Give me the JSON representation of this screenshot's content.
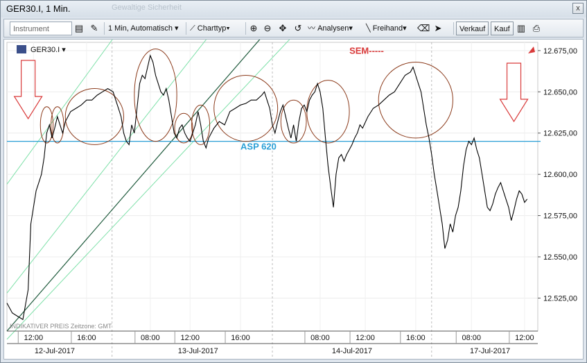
{
  "window": {
    "title": "GER30.I, 1 Min.",
    "ghost_text": "Gewaltige Sicherheit",
    "close_glyph": "x"
  },
  "toolbar": {
    "instrument_placeholder": "Instrument",
    "interval": "1 Min, Automatisch",
    "charttype": "Charttyp",
    "analysen": "Analysen",
    "freihand": "Freihand",
    "verkauf": "Verkauf",
    "kauf": "Kauf"
  },
  "chart_header": {
    "symbol": "GER30.I",
    "footnote": "INDIKATIVER PREIS   Zeitzone: GMT"
  },
  "annotations": {
    "asp": "ASP 620",
    "sem": "SEM-----"
  },
  "colors": {
    "price_line": "#000000",
    "ellipse": "#8b3a1a",
    "asp_line": "#2a9fd6",
    "channel_light": "#7de0a8",
    "channel_dark": "#1e5a3c",
    "arrow": "#d93a3a",
    "sem_text": "#d93a3a",
    "asp_text": "#2a9fd6"
  },
  "icons": [
    "instrument-picker-icon",
    "compare-icon",
    "charttype-icon",
    "zoom-in-icon",
    "zoom-out-icon",
    "pan-icon",
    "undo-icon",
    "analysen-icon",
    "freihand-line-icon",
    "eraser-icon",
    "cursor-icon",
    "chart-layout-icon",
    "print-icon",
    "cfd-badge-icon",
    "trend-flag-icon"
  ],
  "chart_data": {
    "type": "line",
    "ylim": [
      12505,
      12680
    ],
    "yticks": [
      12525,
      12550,
      12575,
      12600,
      12625,
      12650,
      12675
    ],
    "ytick_labels": [
      "12.525,00",
      "12.550,00",
      "12.575,00",
      "12.600,00",
      "12.625,00",
      "12.650,00",
      "12.675,00"
    ],
    "time_ticks": [
      {
        "label": "12:00",
        "t": 0.05
      },
      {
        "label": "16:00",
        "t": 0.15
      },
      {
        "label": "08:00",
        "t": 0.27
      },
      {
        "label": "12:00",
        "t": 0.345
      },
      {
        "label": "16:00",
        "t": 0.44
      },
      {
        "label": "08:00",
        "t": 0.59
      },
      {
        "label": "12:00",
        "t": 0.675
      },
      {
        "label": "16:00",
        "t": 0.77
      },
      {
        "label": "08:00",
        "t": 0.875
      },
      {
        "label": "12:00",
        "t": 0.975
      }
    ],
    "day_labels": [
      {
        "label": "12-Jul-2017",
        "t": 0.09
      },
      {
        "label": "13-Jul-2017",
        "t": 0.36
      },
      {
        "label": "14-Jul-2017",
        "t": 0.65
      },
      {
        "label": "17-Jul-2017",
        "t": 0.91
      }
    ],
    "day_boundaries": [
      0.198,
      0.5,
      0.8
    ],
    "asp_level": 12620,
    "series": [
      {
        "points": [
          [
            0.0,
            12522
          ],
          [
            0.01,
            12516
          ],
          [
            0.02,
            12514
          ],
          [
            0.03,
            12512
          ],
          [
            0.04,
            12530
          ],
          [
            0.045,
            12570
          ],
          [
            0.05,
            12580
          ],
          [
            0.055,
            12590
          ],
          [
            0.06,
            12595
          ],
          [
            0.065,
            12600
          ],
          [
            0.07,
            12610
          ],
          [
            0.075,
            12625
          ],
          [
            0.08,
            12630
          ],
          [
            0.085,
            12622
          ],
          [
            0.09,
            12628
          ],
          [
            0.095,
            12635
          ],
          [
            0.1,
            12630
          ],
          [
            0.105,
            12625
          ],
          [
            0.11,
            12632
          ],
          [
            0.12,
            12638
          ],
          [
            0.13,
            12640
          ],
          [
            0.14,
            12642
          ],
          [
            0.15,
            12645
          ],
          [
            0.16,
            12645
          ],
          [
            0.17,
            12648
          ],
          [
            0.18,
            12650
          ],
          [
            0.19,
            12652
          ],
          [
            0.2,
            12650
          ],
          [
            0.205,
            12645
          ],
          [
            0.21,
            12640
          ],
          [
            0.215,
            12635
          ],
          [
            0.22,
            12625
          ],
          [
            0.225,
            12620
          ],
          [
            0.23,
            12618
          ],
          [
            0.235,
            12630
          ],
          [
            0.24,
            12625
          ],
          [
            0.245,
            12640
          ],
          [
            0.25,
            12655
          ],
          [
            0.255,
            12660
          ],
          [
            0.26,
            12658
          ],
          [
            0.265,
            12665
          ],
          [
            0.27,
            12672
          ],
          [
            0.275,
            12668
          ],
          [
            0.28,
            12660
          ],
          [
            0.285,
            12655
          ],
          [
            0.29,
            12650
          ],
          [
            0.295,
            12648
          ],
          [
            0.3,
            12652
          ],
          [
            0.305,
            12645
          ],
          [
            0.31,
            12635
          ],
          [
            0.315,
            12625
          ],
          [
            0.32,
            12622
          ],
          [
            0.325,
            12628
          ],
          [
            0.33,
            12630
          ],
          [
            0.335,
            12625
          ],
          [
            0.34,
            12622
          ],
          [
            0.345,
            12620
          ],
          [
            0.35,
            12625
          ],
          [
            0.355,
            12630
          ],
          [
            0.36,
            12638
          ],
          [
            0.365,
            12630
          ],
          [
            0.37,
            12620
          ],
          [
            0.375,
            12616
          ],
          [
            0.38,
            12622
          ],
          [
            0.39,
            12628
          ],
          [
            0.4,
            12632
          ],
          [
            0.41,
            12630
          ],
          [
            0.42,
            12638
          ],
          [
            0.43,
            12640
          ],
          [
            0.44,
            12642
          ],
          [
            0.45,
            12643
          ],
          [
            0.46,
            12645
          ],
          [
            0.47,
            12645
          ],
          [
            0.48,
            12648
          ],
          [
            0.485,
            12650
          ],
          [
            0.49,
            12645
          ],
          [
            0.495,
            12640
          ],
          [
            0.5,
            12630
          ],
          [
            0.505,
            12625
          ],
          [
            0.51,
            12632
          ],
          [
            0.515,
            12638
          ],
          [
            0.52,
            12642
          ],
          [
            0.525,
            12635
          ],
          [
            0.53,
            12628
          ],
          [
            0.535,
            12622
          ],
          [
            0.54,
            12630
          ],
          [
            0.545,
            12620
          ],
          [
            0.55,
            12632
          ],
          [
            0.555,
            12640
          ],
          [
            0.56,
            12642
          ],
          [
            0.565,
            12638
          ],
          [
            0.57,
            12645
          ],
          [
            0.575,
            12648
          ],
          [
            0.58,
            12650
          ],
          [
            0.585,
            12655
          ],
          [
            0.59,
            12650
          ],
          [
            0.595,
            12640
          ],
          [
            0.6,
            12622
          ],
          [
            0.605,
            12605
          ],
          [
            0.61,
            12592
          ],
          [
            0.615,
            12580
          ],
          [
            0.62,
            12600
          ],
          [
            0.625,
            12610
          ],
          [
            0.63,
            12612
          ],
          [
            0.635,
            12608
          ],
          [
            0.64,
            12612
          ],
          [
            0.645,
            12615
          ],
          [
            0.65,
            12618
          ],
          [
            0.655,
            12622
          ],
          [
            0.66,
            12625
          ],
          [
            0.665,
            12630
          ],
          [
            0.67,
            12628
          ],
          [
            0.68,
            12635
          ],
          [
            0.69,
            12640
          ],
          [
            0.7,
            12642
          ],
          [
            0.71,
            12645
          ],
          [
            0.72,
            12648
          ],
          [
            0.73,
            12650
          ],
          [
            0.74,
            12655
          ],
          [
            0.75,
            12660
          ],
          [
            0.76,
            12662
          ],
          [
            0.765,
            12665
          ],
          [
            0.77,
            12660
          ],
          [
            0.775,
            12655
          ],
          [
            0.78,
            12650
          ],
          [
            0.785,
            12640
          ],
          [
            0.79,
            12630
          ],
          [
            0.795,
            12622
          ],
          [
            0.8,
            12612
          ],
          [
            0.805,
            12600
          ],
          [
            0.81,
            12590
          ],
          [
            0.815,
            12580
          ],
          [
            0.82,
            12570
          ],
          [
            0.825,
            12555
          ],
          [
            0.83,
            12560
          ],
          [
            0.835,
            12570
          ],
          [
            0.84,
            12565
          ],
          [
            0.845,
            12575
          ],
          [
            0.85,
            12580
          ],
          [
            0.855,
            12590
          ],
          [
            0.86,
            12605
          ],
          [
            0.865,
            12615
          ],
          [
            0.87,
            12620
          ],
          [
            0.875,
            12618
          ],
          [
            0.88,
            12622
          ],
          [
            0.885,
            12615
          ],
          [
            0.89,
            12610
          ],
          [
            0.895,
            12600
          ],
          [
            0.9,
            12590
          ],
          [
            0.905,
            12580
          ],
          [
            0.91,
            12578
          ],
          [
            0.915,
            12582
          ],
          [
            0.92,
            12588
          ],
          [
            0.925,
            12592
          ],
          [
            0.93,
            12595
          ],
          [
            0.935,
            12590
          ],
          [
            0.94,
            12585
          ],
          [
            0.945,
            12580
          ],
          [
            0.95,
            12572
          ],
          [
            0.955,
            12578
          ],
          [
            0.96,
            12585
          ],
          [
            0.965,
            12590
          ],
          [
            0.97,
            12588
          ],
          [
            0.975,
            12583
          ],
          [
            0.98,
            12585
          ]
        ]
      }
    ]
  }
}
